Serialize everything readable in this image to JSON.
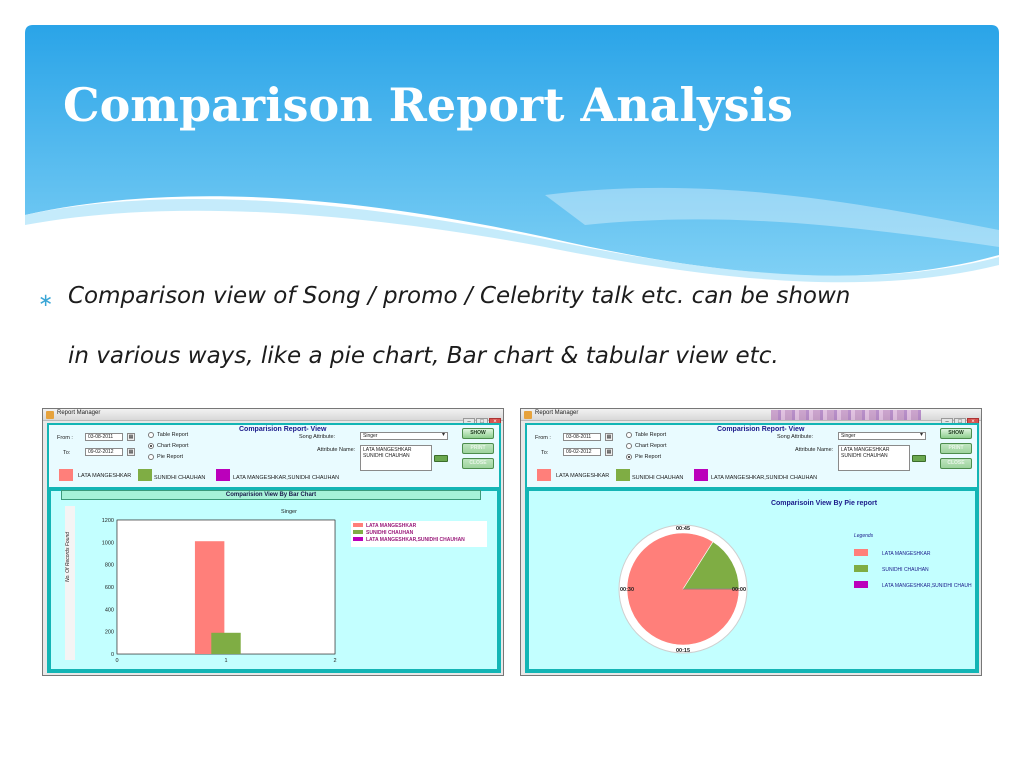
{
  "slide": {
    "title": "Comparison Report Analysis",
    "bullet_lines": [
      "Comparison view of Song / promo / Celebrity talk etc. can be shown",
      "in various ways, like a pie chart, Bar chart  & tabular view etc."
    ],
    "bullet_icon": "asterisk-bullet-icon",
    "colors": {
      "banner_top": "#2aa9ea",
      "banner_bottom": "#8fd6f6",
      "bullet": "#3aa6d6"
    }
  },
  "window_common": {
    "title": "Report Manager",
    "report_title": "Comparision Report- View",
    "from_label": "From :",
    "to_label": "To:",
    "from_date": "03-08-2011",
    "to_date": "09-02-2012",
    "radio_table": "Table Report",
    "radio_chart": "Chart Report",
    "radio_pie": "Pie Report",
    "song_attribute_label": "Song Attribute:",
    "song_attribute_value": "Singer",
    "attribute_name_label": "Attribute Name:",
    "attribute_names": [
      "LATA MANGESHKAR",
      "SUNIDHI CHAUHAN"
    ],
    "btn_show": "SHOW",
    "btn_print": "PRINT",
    "btn_close": "CLOSE",
    "legend_1": "LATA MANGESHKAR",
    "legend_2": "SUNIDHI CHAUHAN",
    "legend_3": "LATA MANGESHKAR,SUNIDHI CHAUHAN",
    "colors": {
      "lata": "#ff7f7a",
      "sunidhi": "#7fad44",
      "both": "#bb00bb",
      "panel_border": "#13b5b5",
      "panel_bg": "#c3ffff"
    }
  },
  "bar_window": {
    "selected_radio": "chart",
    "chart_header": "Comparision View By Bar Chart"
  },
  "pie_window": {
    "selected_radio": "pie",
    "chart_header": "Comparisoin View By Pie report",
    "legend_title": "Legends",
    "legend_3_truncated": "LATA MANGESHKAR,SUNIDHI CHAUH",
    "clock_labels": [
      "00:45",
      "00:00",
      "00:15",
      "00:30"
    ]
  },
  "chart_data": [
    {
      "type": "bar",
      "title": "Singer",
      "ylabel": "No. Of Records Found",
      "xlabel": "",
      "x_ticks": [
        "0",
        "1",
        "2"
      ],
      "y_ticks": [
        "0",
        "200",
        "400",
        "600",
        "800",
        "1000",
        "1200"
      ],
      "ylim": [
        0,
        1200
      ],
      "xlim": [
        0,
        2
      ],
      "series": [
        {
          "name": "LATA MANGESHKAR",
          "x": 0.85,
          "value": 1010,
          "color": "#ff7f7a"
        },
        {
          "name": "SUNIDHI CHAUHAN",
          "x": 1.0,
          "value": 190,
          "color": "#7fad44"
        },
        {
          "name": "LATA MANGESHKAR,SUNIDHI CHAUHAN",
          "x": 1.15,
          "value": 0,
          "color": "#bb00bb"
        }
      ],
      "legend": [
        "LATA MANGESHKAR",
        "SUNIDHI CHAUHAN",
        "LATA MANGESHKAR,SUNIDHI CHAUHAN"
      ],
      "legend_position": "top-right",
      "grid": true
    },
    {
      "type": "pie",
      "title": "Comparisoin View By Pie report",
      "slices": [
        {
          "name": "LATA MANGESHKAR",
          "value": 84,
          "color": "#ff7f7a"
        },
        {
          "name": "SUNIDHI CHAUHAN",
          "value": 16,
          "color": "#7fad44"
        },
        {
          "name": "LATA MANGESHKAR,SUNIDHI CHAUHAN",
          "value": 0,
          "color": "#bb00bb"
        }
      ],
      "legend_position": "right"
    }
  ]
}
